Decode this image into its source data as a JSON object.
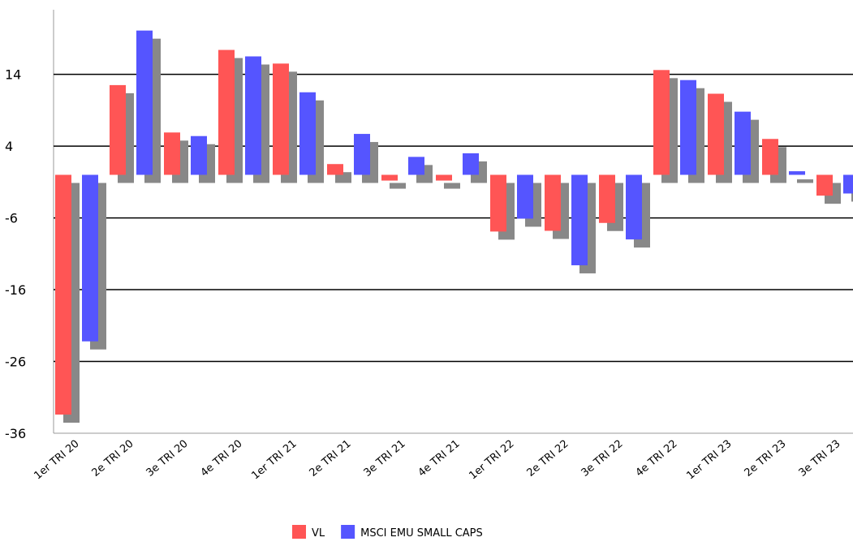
{
  "chart_data": {
    "type": "bar",
    "categories": [
      "1er TRI 20",
      "2e TRI 20",
      "3e TRI 20",
      "4e TRI 20",
      "1er TRI 21",
      "2e TRI 21",
      "3e TRI 21",
      "4e TRI 21",
      "1er TRI 22",
      "2e TRI 22",
      "3e TRI 22",
      "4e TRI 22",
      "1er TRI 23",
      "2e TRI 23",
      "3e TRI 23"
    ],
    "series": [
      {
        "name": "VL",
        "color": "#ff5555",
        "values": [
          -33.4,
          12.5,
          5.9,
          17.4,
          15.5,
          1.5,
          -0.8,
          -0.8,
          -7.9,
          -7.8,
          -6.7,
          14.6,
          11.3,
          5,
          -2.9
        ]
      },
      {
        "name": "MSCI EMU SMALL CAPS",
        "color": "#5555ff",
        "values": [
          -23.2,
          20.1,
          5.4,
          16.5,
          11.5,
          5.7,
          2.5,
          3,
          -6.1,
          -12.6,
          -9,
          13.2,
          8.8,
          0.5,
          -2.6
        ]
      }
    ],
    "ylim": [
      -36,
      23
    ],
    "yticks": [
      -36,
      -26,
      -16,
      -6,
      4,
      14
    ],
    "grid": true,
    "legend": "bottom"
  }
}
